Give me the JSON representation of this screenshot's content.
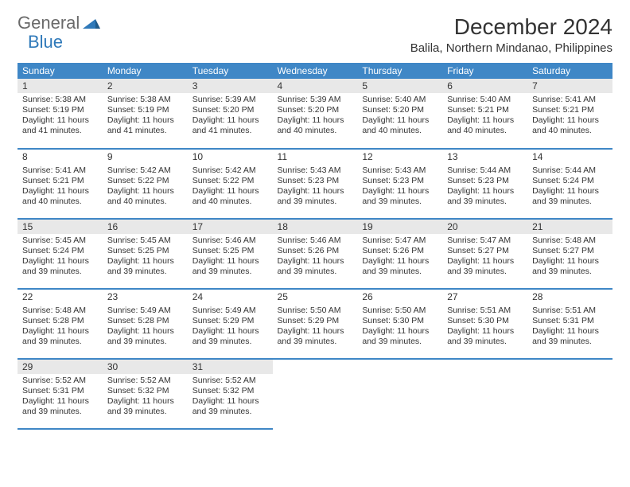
{
  "logo": {
    "text1": "General",
    "text2": "Blue"
  },
  "title": "December 2024",
  "subtitle": "Balila, Northern Mindanao, Philippines",
  "colors": {
    "header_bg": "#3f87c6",
    "header_fg": "#ffffff",
    "shade_bg": "#e8e8e8",
    "border": "#3f87c6",
    "logo_gray": "#6a6a6a",
    "logo_blue": "#2f79b9"
  },
  "day_headers": [
    "Sunday",
    "Monday",
    "Tuesday",
    "Wednesday",
    "Thursday",
    "Friday",
    "Saturday"
  ],
  "weeks": [
    [
      {
        "n": "1",
        "shade": true,
        "sunrise": "Sunrise: 5:38 AM",
        "sunset": "Sunset: 5:19 PM",
        "day1": "Daylight: 11 hours",
        "day2": "and 41 minutes."
      },
      {
        "n": "2",
        "shade": true,
        "sunrise": "Sunrise: 5:38 AM",
        "sunset": "Sunset: 5:19 PM",
        "day1": "Daylight: 11 hours",
        "day2": "and 41 minutes."
      },
      {
        "n": "3",
        "shade": true,
        "sunrise": "Sunrise: 5:39 AM",
        "sunset": "Sunset: 5:20 PM",
        "day1": "Daylight: 11 hours",
        "day2": "and 41 minutes."
      },
      {
        "n": "4",
        "shade": true,
        "sunrise": "Sunrise: 5:39 AM",
        "sunset": "Sunset: 5:20 PM",
        "day1": "Daylight: 11 hours",
        "day2": "and 40 minutes."
      },
      {
        "n": "5",
        "shade": true,
        "sunrise": "Sunrise: 5:40 AM",
        "sunset": "Sunset: 5:20 PM",
        "day1": "Daylight: 11 hours",
        "day2": "and 40 minutes."
      },
      {
        "n": "6",
        "shade": true,
        "sunrise": "Sunrise: 5:40 AM",
        "sunset": "Sunset: 5:21 PM",
        "day1": "Daylight: 11 hours",
        "day2": "and 40 minutes."
      },
      {
        "n": "7",
        "shade": true,
        "sunrise": "Sunrise: 5:41 AM",
        "sunset": "Sunset: 5:21 PM",
        "day1": "Daylight: 11 hours",
        "day2": "and 40 minutes."
      }
    ],
    [
      {
        "n": "8",
        "shade": false,
        "sunrise": "Sunrise: 5:41 AM",
        "sunset": "Sunset: 5:21 PM",
        "day1": "Daylight: 11 hours",
        "day2": "and 40 minutes."
      },
      {
        "n": "9",
        "shade": false,
        "sunrise": "Sunrise: 5:42 AM",
        "sunset": "Sunset: 5:22 PM",
        "day1": "Daylight: 11 hours",
        "day2": "and 40 minutes."
      },
      {
        "n": "10",
        "shade": false,
        "sunrise": "Sunrise: 5:42 AM",
        "sunset": "Sunset: 5:22 PM",
        "day1": "Daylight: 11 hours",
        "day2": "and 40 minutes."
      },
      {
        "n": "11",
        "shade": false,
        "sunrise": "Sunrise: 5:43 AM",
        "sunset": "Sunset: 5:23 PM",
        "day1": "Daylight: 11 hours",
        "day2": "and 39 minutes."
      },
      {
        "n": "12",
        "shade": false,
        "sunrise": "Sunrise: 5:43 AM",
        "sunset": "Sunset: 5:23 PM",
        "day1": "Daylight: 11 hours",
        "day2": "and 39 minutes."
      },
      {
        "n": "13",
        "shade": false,
        "sunrise": "Sunrise: 5:44 AM",
        "sunset": "Sunset: 5:23 PM",
        "day1": "Daylight: 11 hours",
        "day2": "and 39 minutes."
      },
      {
        "n": "14",
        "shade": false,
        "sunrise": "Sunrise: 5:44 AM",
        "sunset": "Sunset: 5:24 PM",
        "day1": "Daylight: 11 hours",
        "day2": "and 39 minutes."
      }
    ],
    [
      {
        "n": "15",
        "shade": true,
        "sunrise": "Sunrise: 5:45 AM",
        "sunset": "Sunset: 5:24 PM",
        "day1": "Daylight: 11 hours",
        "day2": "and 39 minutes."
      },
      {
        "n": "16",
        "shade": true,
        "sunrise": "Sunrise: 5:45 AM",
        "sunset": "Sunset: 5:25 PM",
        "day1": "Daylight: 11 hours",
        "day2": "and 39 minutes."
      },
      {
        "n": "17",
        "shade": true,
        "sunrise": "Sunrise: 5:46 AM",
        "sunset": "Sunset: 5:25 PM",
        "day1": "Daylight: 11 hours",
        "day2": "and 39 minutes."
      },
      {
        "n": "18",
        "shade": true,
        "sunrise": "Sunrise: 5:46 AM",
        "sunset": "Sunset: 5:26 PM",
        "day1": "Daylight: 11 hours",
        "day2": "and 39 minutes."
      },
      {
        "n": "19",
        "shade": true,
        "sunrise": "Sunrise: 5:47 AM",
        "sunset": "Sunset: 5:26 PM",
        "day1": "Daylight: 11 hours",
        "day2": "and 39 minutes."
      },
      {
        "n": "20",
        "shade": true,
        "sunrise": "Sunrise: 5:47 AM",
        "sunset": "Sunset: 5:27 PM",
        "day1": "Daylight: 11 hours",
        "day2": "and 39 minutes."
      },
      {
        "n": "21",
        "shade": true,
        "sunrise": "Sunrise: 5:48 AM",
        "sunset": "Sunset: 5:27 PM",
        "day1": "Daylight: 11 hours",
        "day2": "and 39 minutes."
      }
    ],
    [
      {
        "n": "22",
        "shade": false,
        "sunrise": "Sunrise: 5:48 AM",
        "sunset": "Sunset: 5:28 PM",
        "day1": "Daylight: 11 hours",
        "day2": "and 39 minutes."
      },
      {
        "n": "23",
        "shade": false,
        "sunrise": "Sunrise: 5:49 AM",
        "sunset": "Sunset: 5:28 PM",
        "day1": "Daylight: 11 hours",
        "day2": "and 39 minutes."
      },
      {
        "n": "24",
        "shade": false,
        "sunrise": "Sunrise: 5:49 AM",
        "sunset": "Sunset: 5:29 PM",
        "day1": "Daylight: 11 hours",
        "day2": "and 39 minutes."
      },
      {
        "n": "25",
        "shade": false,
        "sunrise": "Sunrise: 5:50 AM",
        "sunset": "Sunset: 5:29 PM",
        "day1": "Daylight: 11 hours",
        "day2": "and 39 minutes."
      },
      {
        "n": "26",
        "shade": false,
        "sunrise": "Sunrise: 5:50 AM",
        "sunset": "Sunset: 5:30 PM",
        "day1": "Daylight: 11 hours",
        "day2": "and 39 minutes."
      },
      {
        "n": "27",
        "shade": false,
        "sunrise": "Sunrise: 5:51 AM",
        "sunset": "Sunset: 5:30 PM",
        "day1": "Daylight: 11 hours",
        "day2": "and 39 minutes."
      },
      {
        "n": "28",
        "shade": false,
        "sunrise": "Sunrise: 5:51 AM",
        "sunset": "Sunset: 5:31 PM",
        "day1": "Daylight: 11 hours",
        "day2": "and 39 minutes."
      }
    ],
    [
      {
        "n": "29",
        "shade": true,
        "sunrise": "Sunrise: 5:52 AM",
        "sunset": "Sunset: 5:31 PM",
        "day1": "Daylight: 11 hours",
        "day2": "and 39 minutes."
      },
      {
        "n": "30",
        "shade": true,
        "sunrise": "Sunrise: 5:52 AM",
        "sunset": "Sunset: 5:32 PM",
        "day1": "Daylight: 11 hours",
        "day2": "and 39 minutes."
      },
      {
        "n": "31",
        "shade": true,
        "sunrise": "Sunrise: 5:52 AM",
        "sunset": "Sunset: 5:32 PM",
        "day1": "Daylight: 11 hours",
        "day2": "and 39 minutes."
      },
      null,
      null,
      null,
      null
    ]
  ]
}
